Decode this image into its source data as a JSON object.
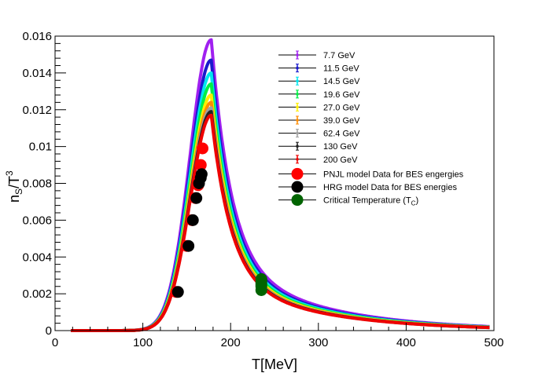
{
  "chart_data": {
    "type": "line",
    "title": "",
    "xlabel": "T[MeV]",
    "ylabel_main": "n",
    "ylabel_sub": "S",
    "ylabel_den": "/T",
    "ylabel_sup": "3",
    "xlim": [
      0,
      500
    ],
    "ylim": [
      0,
      0.016
    ],
    "x_ticks": [
      0,
      100,
      200,
      300,
      400,
      500
    ],
    "x_tick_labels": [
      "0",
      "100",
      "200",
      "300",
      "400",
      "500"
    ],
    "y_ticks": [
      0,
      0.002,
      0.004,
      0.006,
      0.008,
      0.01,
      0.012,
      0.014,
      0.016
    ],
    "y_tick_labels": [
      "0",
      "0.002",
      "0.004",
      "0.006",
      "0.008",
      "0.01",
      "0.012",
      "0.014",
      "0.016"
    ],
    "grid": false,
    "legend_position": "top-right",
    "series": [
      {
        "name": "7.7 GeV",
        "color": "#a020f0",
        "peak_x": 178,
        "peak_y": 0.0158
      },
      {
        "name": "11.5 GeV",
        "color": "#1a1acc",
        "peak_x": 178,
        "peak_y": 0.0147
      },
      {
        "name": "14.5 GeV",
        "color": "#00e5ee",
        "peak_x": 178,
        "peak_y": 0.014
      },
      {
        "name": "19.6 GeV",
        "color": "#00ee44",
        "peak_x": 178,
        "peak_y": 0.0134
      },
      {
        "name": "27.0 GeV",
        "color": "#ffee00",
        "peak_x": 178,
        "peak_y": 0.0128
      },
      {
        "name": "39.0 GeV",
        "color": "#ff8c00",
        "peak_x": 178,
        "peak_y": 0.0124
      },
      {
        "name": "62.4 GeV",
        "color": "#a0a0a0",
        "peak_x": 178,
        "peak_y": 0.0121
      },
      {
        "name": "130 GeV",
        "color": "#222222",
        "peak_x": 178,
        "peak_y": 0.0119
      },
      {
        "name": "200 GeV",
        "color": "#ee0000",
        "peak_x": 178,
        "peak_y": 0.0117
      }
    ],
    "pnjl_points": {
      "name": "PNJL model Data for BES engergies",
      "color": "#ff0000",
      "x": [
        138,
        150,
        156,
        160,
        163,
        165,
        166,
        168
      ],
      "y": [
        0.0021,
        0.0046,
        0.006,
        0.0072,
        0.0079,
        0.0083,
        0.009,
        0.0099
      ]
    },
    "hrg_points": {
      "name": "HRG model Data for BES energies",
      "color": "#000000",
      "x": [
        140,
        152,
        157,
        161,
        164,
        166,
        167
      ],
      "y": [
        0.0021,
        0.0046,
        0.006,
        0.0072,
        0.008,
        0.0083,
        0.0085
      ]
    },
    "tc_points": {
      "name": "Critical Temperature (T",
      "name_sub": "C",
      "name_end": ")",
      "color": "#006400",
      "x": [
        235,
        235,
        235,
        235,
        235,
        235
      ],
      "y": [
        0.0022,
        0.0024,
        0.0025,
        0.0026,
        0.0027,
        0.0028
      ]
    }
  }
}
